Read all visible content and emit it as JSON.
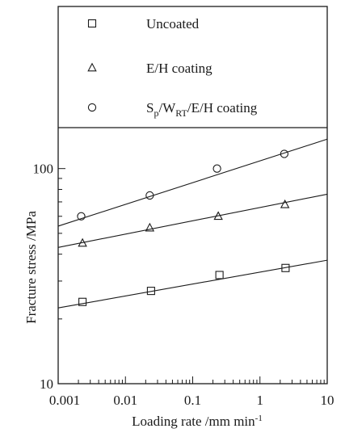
{
  "chart_data": {
    "type": "scatter",
    "x_scale": "log",
    "y_scale": "log",
    "xlabel": "Loading rate /mm min",
    "xlabel_sup": "-1",
    "ylabel": "Fracture stress /MPa",
    "xlim": [
      0.001,
      10
    ],
    "ylim": [
      10,
      155
    ],
    "x_ticks": [
      {
        "value": 0.001,
        "label": "0.001"
      },
      {
        "value": 0.01,
        "label": "0.01"
      },
      {
        "value": 0.1,
        "label": "0.1"
      },
      {
        "value": 1,
        "label": "1"
      },
      {
        "value": 10,
        "label": "10"
      }
    ],
    "y_ticks": [
      {
        "value": 10,
        "label": "10"
      },
      {
        "value": 100,
        "label": "100"
      }
    ],
    "grid": false,
    "legend_position": "top, inside frame",
    "series": [
      {
        "name": "Uncoated",
        "name_parts": [
          {
            "t": "Uncoated",
            "s": "n"
          }
        ],
        "marker": "square",
        "x": [
          0.0023,
          0.024,
          0.25,
          2.4
        ],
        "y": [
          24,
          27,
          32,
          34.5
        ],
        "fit": {
          "x": [
            0.001,
            10
          ],
          "y": [
            22.5,
            37.5
          ]
        }
      },
      {
        "name": "E/H coating",
        "name_parts": [
          {
            "t": "E/H coating",
            "s": "n"
          }
        ],
        "marker": "triangle",
        "x": [
          0.0023,
          0.023,
          0.24,
          2.35
        ],
        "y": [
          45,
          53,
          60,
          68
        ],
        "fit": {
          "x": [
            0.001,
            10
          ],
          "y": [
            43,
            76
          ]
        }
      },
      {
        "name": "Sp/WRT/E/H coating",
        "name_parts": [
          {
            "t": "S",
            "s": "n"
          },
          {
            "t": "p",
            "s": "sub"
          },
          {
            "t": "/W",
            "s": "n"
          },
          {
            "t": "RT",
            "s": "sub"
          },
          {
            "t": "/E/H coating",
            "s": "n"
          }
        ],
        "marker": "circle",
        "x": [
          0.0022,
          0.023,
          0.23,
          2.3
        ],
        "y": [
          60,
          75,
          100,
          117
        ],
        "fit": {
          "x": [
            0.001,
            10
          ],
          "y": [
            54,
            137
          ]
        }
      }
    ]
  }
}
